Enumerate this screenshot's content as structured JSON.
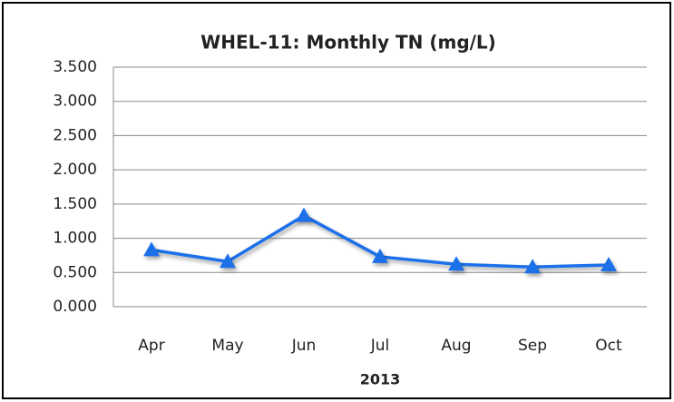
{
  "chart_data": {
    "type": "line",
    "title": "WHEL-11: Monthly TN (mg/L)",
    "x_label": "2013",
    "categories": [
      "Apr",
      "May",
      "Jun",
      "Jul",
      "Aug",
      "Sep",
      "Oct"
    ],
    "series": [
      {
        "name": "TN",
        "color": "#1f6fe8",
        "values": [
          0.83,
          0.66,
          1.33,
          0.73,
          0.62,
          0.58,
          0.61
        ]
      }
    ],
    "ylim": [
      0,
      3.5
    ],
    "yticks": [
      {
        "value": 0,
        "label": "0.000"
      },
      {
        "value": 0.5,
        "label": "0.500"
      },
      {
        "value": 1,
        "label": "1.000"
      },
      {
        "value": 1.5,
        "label": "1.500"
      },
      {
        "value": 2,
        "label": "2.000"
      },
      {
        "value": 2.5,
        "label": "2.500"
      },
      {
        "value": 3,
        "label": "3.000"
      },
      {
        "value": 3.5,
        "label": "3.500"
      }
    ],
    "grid": true
  }
}
